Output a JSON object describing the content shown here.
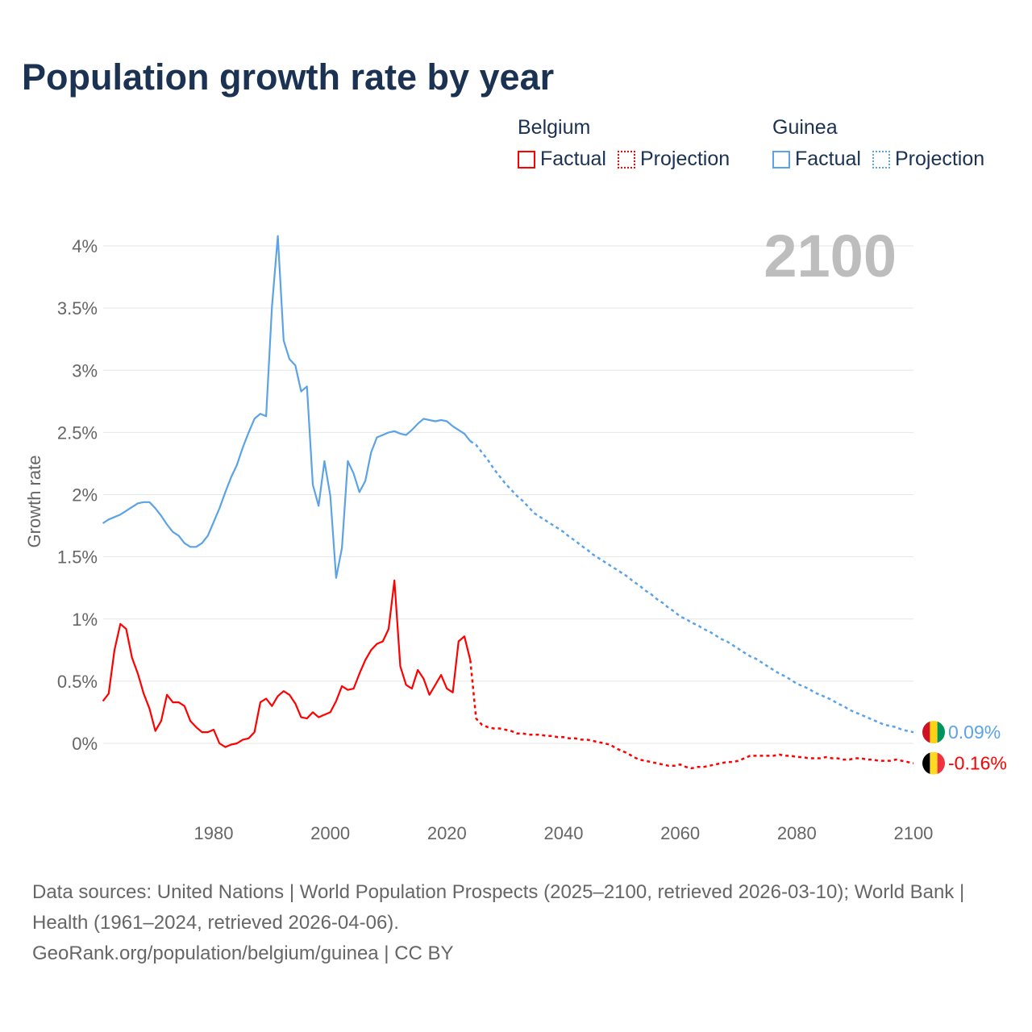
{
  "title": "Population growth rate by year",
  "legend": {
    "groups": [
      {
        "country": "Belgium",
        "color": "#ff0000",
        "factual": "Factual",
        "projection": "Projection"
      },
      {
        "country": "Guinea",
        "color": "#5ba3e6",
        "factual": "Factual",
        "projection": "Projection"
      }
    ]
  },
  "year_display": "2100",
  "end_labels": {
    "guinea": "0.09%",
    "belgium": "-0.16%"
  },
  "flags": {
    "guinea": [
      "#ce1126",
      "#fcd116",
      "#009460"
    ],
    "belgium": [
      "#000000",
      "#fdda24",
      "#ef3340"
    ]
  },
  "footer": {
    "sources": "Data sources: United Nations | World Population Prospects (2025–2100, retrieved 2026-03-10); World Bank | Health (1961–2024, retrieved 2026-04-06).",
    "credit": "GeoRank.org/population/belgium/guinea | CC BY"
  },
  "chart_data": {
    "type": "line",
    "title": "Population growth rate by year",
    "xlabel": "",
    "ylabel": "Growth rate",
    "ylim": [
      -0.6,
      4.15
    ],
    "xlim": [
      1961,
      2100
    ],
    "yticks": [
      {
        "v": 0,
        "l": "0%"
      },
      {
        "v": 0.5,
        "l": "0.5%"
      },
      {
        "v": 1,
        "l": "1%"
      },
      {
        "v": 1.5,
        "l": "1.5%"
      },
      {
        "v": 2,
        "l": "2%"
      },
      {
        "v": 2.5,
        "l": "2.5%"
      },
      {
        "v": 3,
        "l": "3%"
      },
      {
        "v": 3.5,
        "l": "3.5%"
      },
      {
        "v": 4,
        "l": "4%"
      }
    ],
    "xticks": [
      {
        "v": 1980,
        "l": "1980"
      },
      {
        "v": 2000,
        "l": "2000"
      },
      {
        "v": 2020,
        "l": "2020"
      },
      {
        "v": 2040,
        "l": "2040"
      },
      {
        "v": 2060,
        "l": "2060"
      },
      {
        "v": 2080,
        "l": "2080"
      },
      {
        "v": 2100,
        "l": "2100"
      }
    ],
    "grid": true,
    "series": [
      {
        "name": "Guinea",
        "color": "#5ba3e6",
        "factual_start": 1961,
        "factual": [
          1.77,
          1.8,
          1.82,
          1.84,
          1.87,
          1.9,
          1.93,
          1.94,
          1.94,
          1.89,
          1.83,
          1.76,
          1.7,
          1.67,
          1.61,
          1.58,
          1.58,
          1.61,
          1.67,
          1.78,
          1.89,
          2.02,
          2.14,
          2.24,
          2.38,
          2.5,
          2.61,
          2.65,
          2.63,
          3.51,
          4.08,
          3.24,
          3.09,
          3.04,
          2.83,
          2.87,
          2.08,
          1.91,
          2.27,
          1.99,
          1.33,
          1.57,
          2.27,
          2.17,
          2.02,
          2.11,
          2.34,
          2.46,
          2.48,
          2.5,
          2.51,
          2.49,
          2.48,
          2.52,
          2.57,
          2.61,
          2.6,
          2.59,
          2.6,
          2.59,
          2.55,
          2.52,
          2.49,
          2.43
        ],
        "projection_start": 2025,
        "projection": [
          2.4,
          2.34,
          2.28,
          2.21,
          2.15,
          2.09,
          2.04,
          1.99,
          1.95,
          1.9,
          1.85,
          1.82,
          1.79,
          1.76,
          1.73,
          1.7,
          1.66,
          1.63,
          1.59,
          1.56,
          1.52,
          1.49,
          1.46,
          1.43,
          1.4,
          1.37,
          1.34,
          1.3,
          1.27,
          1.23,
          1.2,
          1.16,
          1.13,
          1.09,
          1.06,
          1.02,
          1.0,
          0.97,
          0.95,
          0.92,
          0.9,
          0.87,
          0.84,
          0.82,
          0.79,
          0.76,
          0.73,
          0.7,
          0.68,
          0.65,
          0.62,
          0.59,
          0.56,
          0.54,
          0.51,
          0.48,
          0.46,
          0.44,
          0.41,
          0.39,
          0.37,
          0.35,
          0.32,
          0.3,
          0.27,
          0.25,
          0.23,
          0.21,
          0.19,
          0.17,
          0.15,
          0.14,
          0.13,
          0.11,
          0.1,
          0.09
        ]
      },
      {
        "name": "Belgium",
        "color": "#ff0000",
        "factual_start": 1961,
        "factual": [
          0.34,
          0.4,
          0.75,
          0.96,
          0.92,
          0.69,
          0.56,
          0.4,
          0.28,
          0.1,
          0.18,
          0.39,
          0.33,
          0.33,
          0.3,
          0.18,
          0.13,
          0.09,
          0.09,
          0.11,
          0.0,
          -0.03,
          -0.01,
          0.0,
          0.03,
          0.04,
          0.09,
          0.33,
          0.36,
          0.3,
          0.38,
          0.42,
          0.39,
          0.32,
          0.21,
          0.2,
          0.25,
          0.21,
          0.23,
          0.25,
          0.34,
          0.46,
          0.43,
          0.44,
          0.56,
          0.67,
          0.75,
          0.8,
          0.82,
          0.92,
          1.31,
          0.62,
          0.47,
          0.44,
          0.59,
          0.52,
          0.39,
          0.47,
          0.55,
          0.44,
          0.41,
          0.82,
          0.86,
          0.67
        ],
        "projection_start": 2025,
        "projection": [
          0.2,
          0.15,
          0.13,
          0.12,
          0.12,
          0.11,
          0.1,
          0.08,
          0.08,
          0.07,
          0.07,
          0.07,
          0.06,
          0.06,
          0.05,
          0.05,
          0.04,
          0.04,
          0.03,
          0.03,
          0.02,
          0.01,
          0.0,
          -0.01,
          -0.04,
          -0.06,
          -0.08,
          -0.11,
          -0.13,
          -0.14,
          -0.15,
          -0.16,
          -0.17,
          -0.18,
          -0.18,
          -0.17,
          -0.19,
          -0.2,
          -0.19,
          -0.19,
          -0.18,
          -0.17,
          -0.16,
          -0.15,
          -0.15,
          -0.14,
          -0.12,
          -0.1,
          -0.1,
          -0.1,
          -0.1,
          -0.1,
          -0.09,
          -0.1,
          -0.1,
          -0.11,
          -0.11,
          -0.12,
          -0.12,
          -0.12,
          -0.11,
          -0.12,
          -0.12,
          -0.13,
          -0.13,
          -0.12,
          -0.12,
          -0.13,
          -0.13,
          -0.14,
          -0.14,
          -0.14,
          -0.13,
          -0.14,
          -0.15,
          -0.16
        ]
      }
    ]
  }
}
